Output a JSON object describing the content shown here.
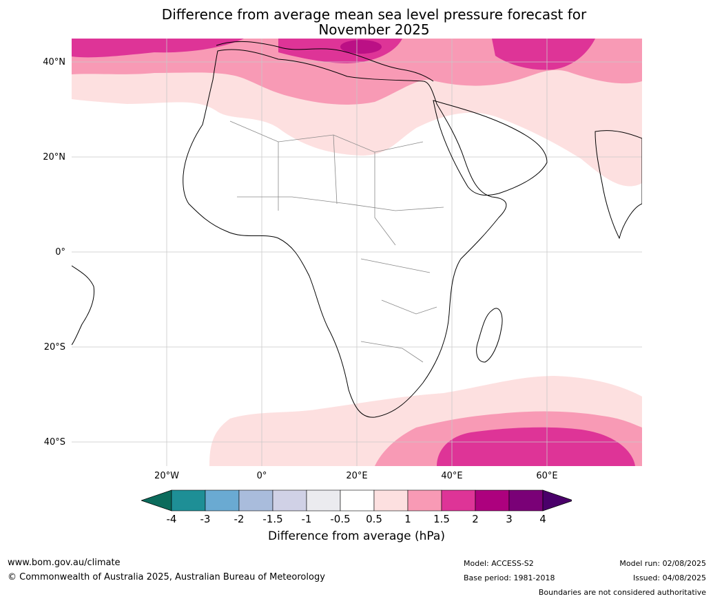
{
  "title_line1": "Difference from average mean sea level pressure forecast for",
  "title_line2": "November 2025",
  "lat_labels": [
    "40°N",
    "20°N",
    "0°",
    "20°S",
    "40°S"
  ],
  "lon_labels": [
    "20°W",
    "0°",
    "20°E",
    "40°E",
    "60°E"
  ],
  "colorbar": {
    "ticks": [
      "-4",
      "-3",
      "-2",
      "-1.5",
      "-1",
      "-0.5",
      "0.5",
      "1",
      "1.5",
      "2",
      "3",
      "4"
    ],
    "colors": [
      "#0b6b5c",
      "#1e8f96",
      "#6aaad2",
      "#a9bcdc",
      "#d0d1e6",
      "#ebebef",
      "#ffffff",
      "#fde0e0",
      "#f89ab5",
      "#de3497",
      "#ad017e",
      "#7a0177",
      "#4a006a"
    ],
    "label": "Difference from average (hPa)"
  },
  "footer": {
    "url": "www.bom.gov.au/climate",
    "copyright": "© Commonwealth of Australia 2025, Australian Bureau of Meteorology",
    "model": "Model: ACCESS-S2",
    "base_period": "Base period: 1981-2018",
    "model_run": "Model run: 02/08/2025",
    "issued": "Issued: 04/08/2025",
    "disclaimer": "Boundaries are not considered authoritative"
  }
}
